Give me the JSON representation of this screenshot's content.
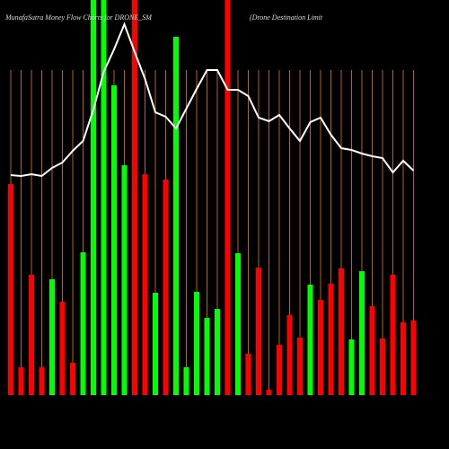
{
  "chart_data": {
    "type": "bar",
    "title": "MunafaSutra  Money Flow  Charts for DRONE_SM",
    "subtitle": "(Drone   Destination  Limit",
    "grid": true,
    "grid_color": "#b8650a",
    "line_color": "#ffffff",
    "ylim": [
      0,
      440
    ],
    "series": [
      {
        "colors": [
          "#ff0000",
          "#ff0000",
          "#ff0000",
          "#ff0000",
          "#00ff00",
          "#ff0000",
          "#ff0000",
          "#00ff00",
          "#00ff00",
          "#00ff00",
          "#00ff00",
          "#00ff00",
          "#ff0000",
          "#ff0000",
          "#00ff00",
          "#ff0000",
          "#00ff00",
          "#00ff00",
          "#00ff00",
          "#00ff00",
          "#00ff00",
          "#ff0000",
          "#00ff00",
          "#ff0000",
          "#ff0000",
          "#ff0000",
          "#ff0000",
          "#ff0000",
          "#ff0000",
          "#00ff00",
          "#ff0000",
          "#ff0000",
          "#ff0000",
          "#00ff00",
          "#00ff00",
          "#ff0000",
          "#ff0000",
          "#ff0000",
          "#ff0000",
          "#ff0000"
        ],
        "values": [
          235,
          31,
          134,
          31,
          129,
          104,
          36,
          159,
          460,
          460,
          345,
          256,
          460,
          246,
          114,
          240,
          399,
          31,
          115,
          86,
          96,
          460,
          158,
          46,
          142,
          6,
          56,
          89,
          64,
          123,
          106,
          124,
          141,
          62,
          138,
          99,
          63,
          134,
          81,
          83
        ]
      },
      {
        "type": "line",
        "values": [
          245,
          244,
          246,
          244,
          253,
          259,
          272,
          283,
          318,
          360,
          385,
          413,
          382,
          352,
          315,
          310,
          297,
          319,
          341,
          362,
          362,
          340,
          340,
          333,
          309,
          305,
          312,
          297,
          283,
          304,
          309,
          290,
          275,
          273,
          269,
          266,
          264,
          248,
          261,
          250
        ]
      }
    ]
  }
}
